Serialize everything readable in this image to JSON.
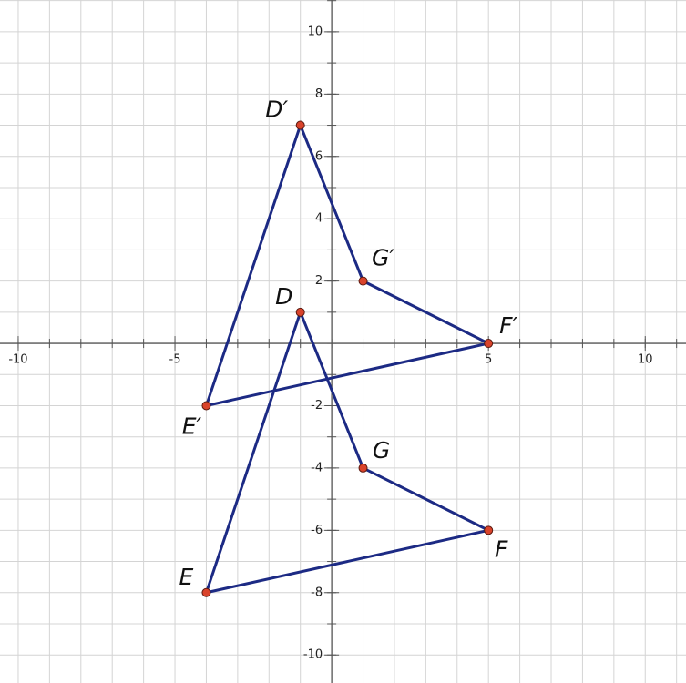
{
  "chart_data": {
    "type": "polygon",
    "xlim": [
      -10.58,
      11.3
    ],
    "ylim": [
      -10.9,
      11.02
    ],
    "xticks": [
      -10,
      -5,
      5,
      10
    ],
    "yticks": [
      -10,
      -8,
      -6,
      -4,
      -2,
      2,
      4,
      6,
      8,
      10
    ],
    "xminorticks": [
      -10,
      -9,
      -8,
      -7,
      -6,
      -5,
      -4,
      -3,
      -2,
      -1,
      0,
      1,
      2,
      3,
      4,
      5,
      6,
      7,
      8,
      9,
      10,
      11
    ],
    "yminorticks": [
      -10,
      -9,
      -8,
      -7,
      -6,
      -5,
      -4,
      -3,
      -2,
      -1,
      0,
      1,
      2,
      3,
      4,
      5,
      6,
      7,
      8,
      9,
      10,
      11
    ],
    "grid": true,
    "color": "#1c2a84",
    "point_color": "#d9432b",
    "series": [
      {
        "labels": [
          "D",
          "E",
          "F",
          "G"
        ],
        "x": [
          -1,
          -4,
          5,
          1
        ],
        "values": [
          1,
          -8,
          -6,
          -4
        ]
      },
      {
        "labels": [
          "D′",
          "E′",
          "F′",
          "G′"
        ],
        "x": [
          -1,
          -4,
          5,
          1
        ],
        "values": [
          7,
          -2,
          0,
          2
        ]
      }
    ]
  }
}
